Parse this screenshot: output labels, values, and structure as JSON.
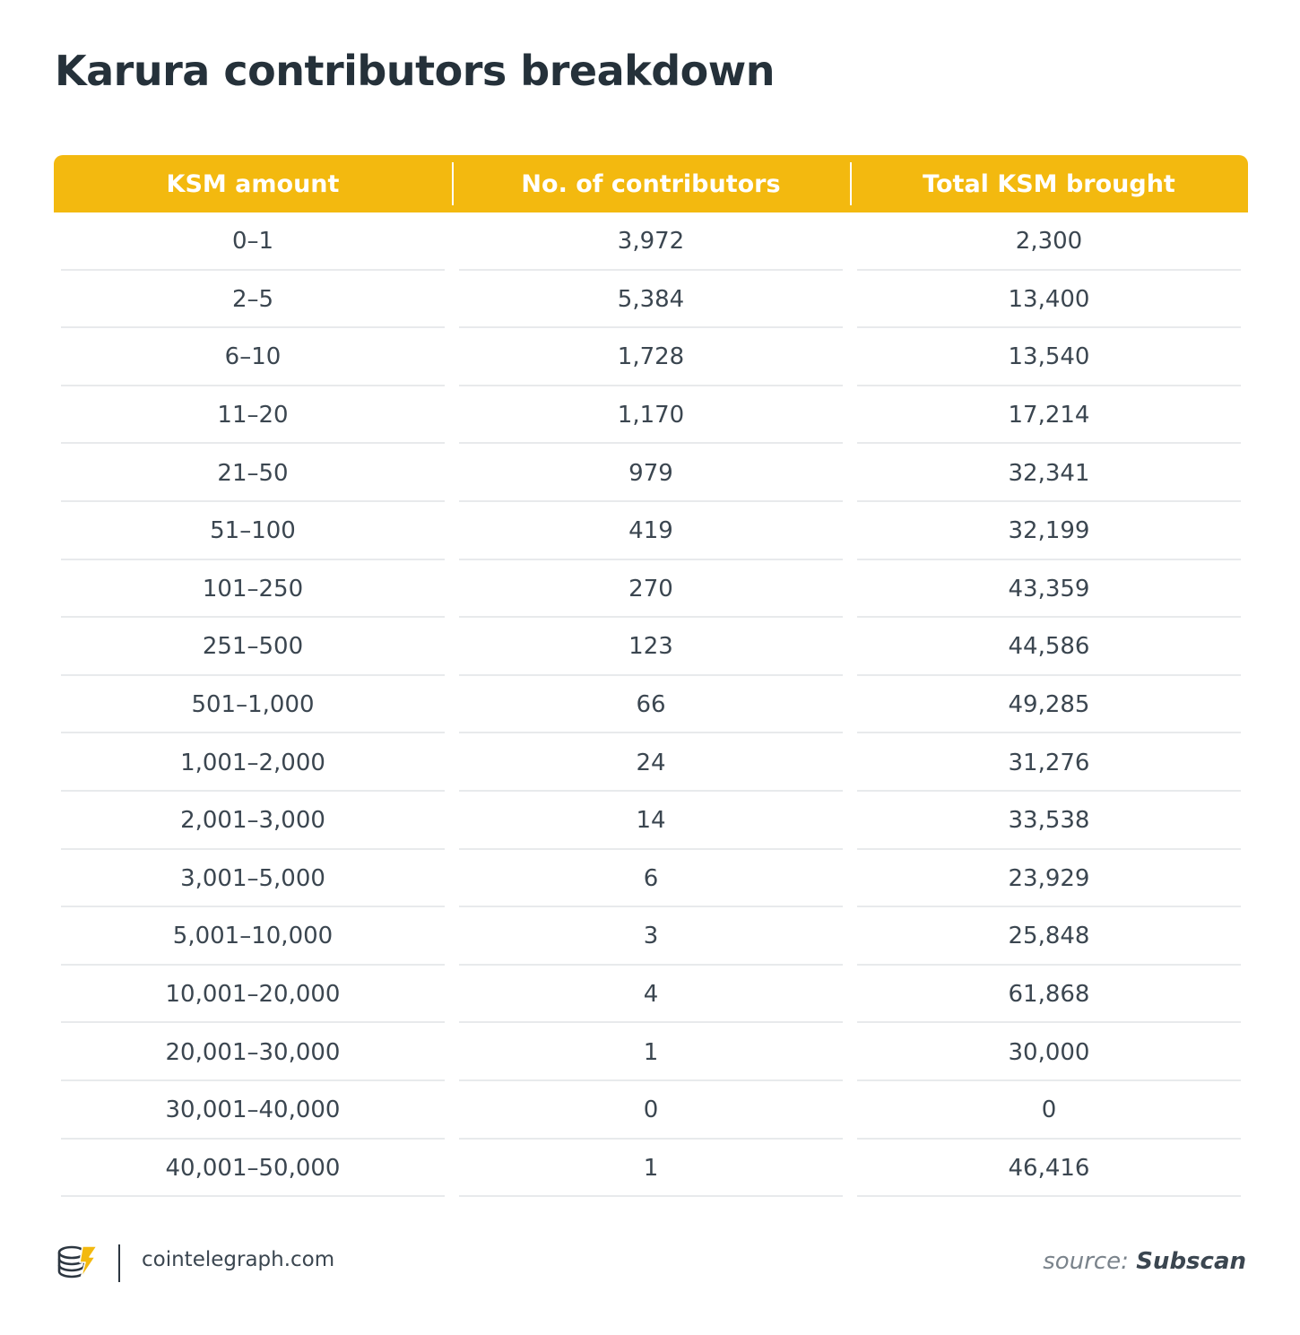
{
  "title": "Karura contributors breakdown",
  "colors": {
    "header_bg": "#f3b90f",
    "header_text": "#ffffff",
    "title": "#25313a",
    "rule": "#e8eaec"
  },
  "chart_data": {
    "type": "table",
    "columns": [
      "KSM amount",
      "No. of contributors",
      "Total KSM brought"
    ],
    "rows": [
      [
        "0–1",
        "3,972",
        "2,300"
      ],
      [
        "2–5",
        "5,384",
        "13,400"
      ],
      [
        "6–10",
        "1,728",
        "13,540"
      ],
      [
        "11–20",
        "1,170",
        "17,214"
      ],
      [
        "21–50",
        "979",
        "32,341"
      ],
      [
        "51–100",
        "419",
        "32,199"
      ],
      [
        "101–250",
        "270",
        "43,359"
      ],
      [
        "251–500",
        "123",
        "44,586"
      ],
      [
        "501–1,000",
        "66",
        "49,285"
      ],
      [
        "1,001–2,000",
        "24",
        "31,276"
      ],
      [
        "2,001–3,000",
        "14",
        "33,538"
      ],
      [
        "3,001–5,000",
        "6",
        "23,929"
      ],
      [
        "5,001–10,000",
        "3",
        "25,848"
      ],
      [
        "10,001–20,000",
        "4",
        "61,868"
      ],
      [
        "20,001–30,000",
        "1",
        "30,000"
      ],
      [
        "30,001–40,000",
        "0",
        "0"
      ],
      [
        "40,001–50,000",
        "1",
        "46,416"
      ]
    ]
  },
  "footer": {
    "logo_icon": "cointelegraph-logo-icon",
    "site": "cointelegraph.com",
    "source_label": "source:",
    "source_name": "Subscan"
  }
}
